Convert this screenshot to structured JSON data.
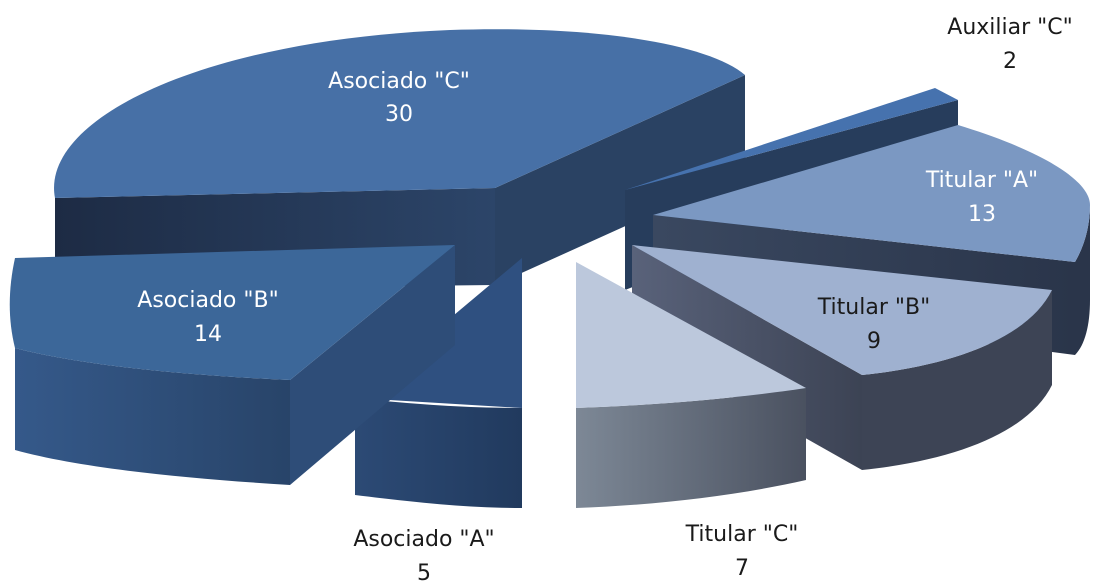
{
  "chart_data": {
    "type": "pie",
    "title": "",
    "legend": "none",
    "slices": [
      {
        "label": "Asociado \"C\"",
        "value": 30,
        "color": "#4770a6"
      },
      {
        "label": "Auxiliar \"C\"",
        "value": 2,
        "color": "#4672ae"
      },
      {
        "label": "Titular \"A\"",
        "value": 13,
        "color": "#7b98c2"
      },
      {
        "label": "Titular \"B\"",
        "value": 9,
        "color": "#9fb1d0"
      },
      {
        "label": "Titular \"C\"",
        "value": 7,
        "color": "#bcc8dc"
      },
      {
        "label": "Asociado \"A\"",
        "value": 5,
        "color": "#3a5f8f"
      },
      {
        "label": "Asociado \"B\"",
        "value": 14,
        "color": "#3c6799"
      }
    ]
  }
}
